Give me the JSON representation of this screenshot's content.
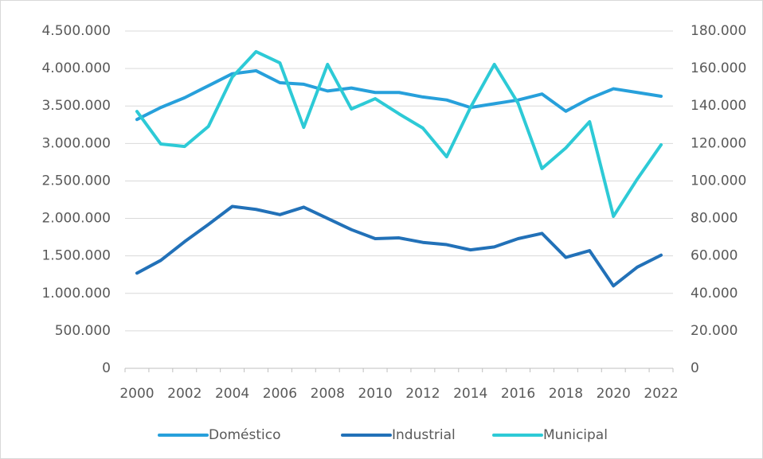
{
  "chart_data": {
    "type": "line",
    "categories": [
      "2000",
      null,
      "2002",
      null,
      "2004",
      null,
      "2006",
      null,
      "2008",
      null,
      "2010",
      null,
      "2012",
      null,
      "2014",
      null,
      "2016",
      null,
      "2018",
      null,
      "2020",
      null,
      "2022"
    ],
    "series": [
      {
        "name": "Doméstico",
        "color": "#27a0db",
        "values": [
          3320000,
          3480000,
          3610000,
          3770000,
          3930000,
          3970000,
          3810000,
          3790000,
          3700000,
          3740000,
          3680000,
          3680000,
          3620000,
          3580000,
          3480000,
          3530000,
          3580000,
          3660000,
          3430000,
          3600000,
          3730000,
          3680000,
          3630000
        ]
      },
      {
        "name": "Industrial",
        "color": "#2271b8",
        "values": [
          1270000,
          1440000,
          1690000,
          1920000,
          2160000,
          2120000,
          2050000,
          2150000,
          2000000,
          1850000,
          1730000,
          1740000,
          1680000,
          1650000,
          1580000,
          1620000,
          1730000,
          1800000,
          1480000,
          1570000,
          1100000,
          1350000,
          1510000
        ]
      },
      {
        "name": "Municipal",
        "color": "#2dcad6",
        "axis": "y2",
        "values": [
          137100,
          119700,
          118400,
          129100,
          155400,
          169000,
          163000,
          128600,
          162200,
          138400,
          143900,
          135800,
          128200,
          112900,
          139200,
          162200,
          141400,
          106600,
          117600,
          131600,
          81100,
          101000,
          119300
        ]
      }
    ],
    "ylim": [
      0,
      4500000
    ],
    "yticks": [
      0,
      {
        "value": 500000,
        "label": "500.000"
      },
      {
        "value": 1000000,
        "label": "1.000.000"
      },
      {
        "value": 1500000,
        "label": "1.500.000"
      },
      {
        "value": 2000000,
        "label": "2.000.000"
      },
      {
        "value": 2500000,
        "label": "2.500.000"
      },
      {
        "value": 3000000,
        "label": "3.000.000"
      },
      {
        "value": 3500000,
        "label": "3.500.000"
      },
      {
        "value": 4000000,
        "label": "4.000.000"
      },
      {
        "value": 4500000,
        "label": "4.500.000"
      }
    ],
    "y2lim": [
      0,
      180000
    ],
    "y2ticks": [
      0,
      {
        "value": 20000,
        "label": "20.000"
      },
      {
        "value": 40000,
        "label": "40.000"
      },
      {
        "value": 60000,
        "label": "60.000"
      },
      {
        "value": 80000,
        "label": "80.000"
      },
      {
        "value": 100000,
        "label": "100.000"
      },
      {
        "value": 120000,
        "label": "120.000"
      },
      {
        "value": 140000,
        "label": "140.000"
      },
      {
        "value": 160000,
        "label": "160.000"
      },
      {
        "value": 180000,
        "label": "180.000"
      }
    ],
    "grid": true,
    "legend": "bottom"
  }
}
